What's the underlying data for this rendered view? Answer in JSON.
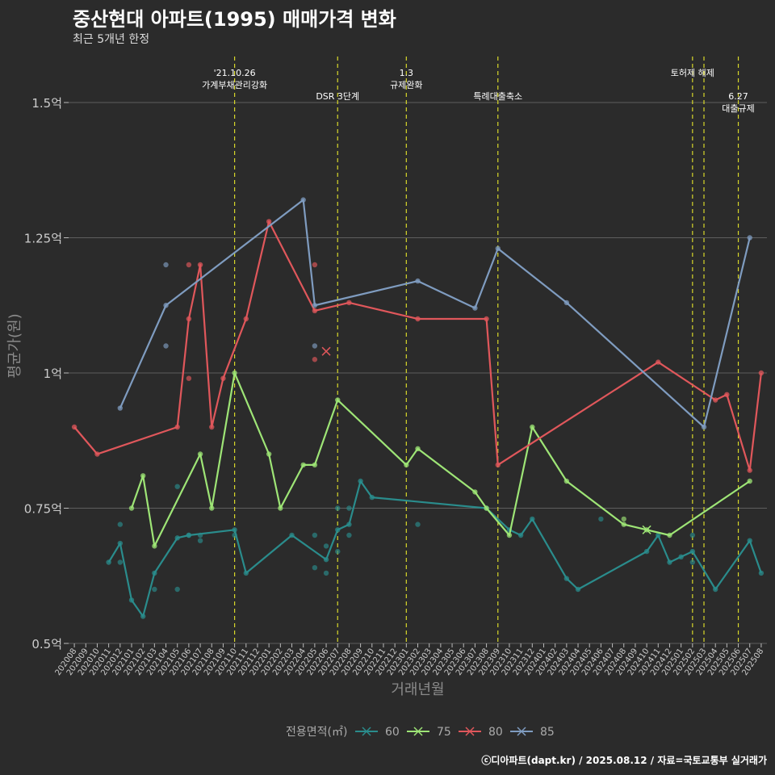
{
  "chart_data": {
    "type": "line",
    "title": "중산현대 아파트(1995) 매매가격 변화",
    "subtitle": "최근 5개년 한정",
    "xlabel": "거래년월",
    "ylabel": "평균가(원)",
    "y_tick_labels": [
      "0.5억",
      "0.75억",
      "1억",
      "1.25억",
      "1.5억"
    ],
    "y_tick_values": [
      0.5,
      0.75,
      1.0,
      1.25,
      1.5
    ],
    "ylim": [
      0.5,
      1.6
    ],
    "x_categories": [
      "202008",
      "202009",
      "202010",
      "202011",
      "202012",
      "202101",
      "202102",
      "202103",
      "202104",
      "202105",
      "202106",
      "202107",
      "202108",
      "202109",
      "202110",
      "202111",
      "202112",
      "202201",
      "202202",
      "202203",
      "202204",
      "202205",
      "202206",
      "202207",
      "202208",
      "202209",
      "202210",
      "202211",
      "202212",
      "202301",
      "202302",
      "202303",
      "202304",
      "202305",
      "202306",
      "202307",
      "202308",
      "202309",
      "202310",
      "202311",
      "202312",
      "202401",
      "202402",
      "202403",
      "202404",
      "202405",
      "202406",
      "202407",
      "202408",
      "202409",
      "202410",
      "202411",
      "202412",
      "202501",
      "202502",
      "202503",
      "202504",
      "202505",
      "202506",
      "202507",
      "202508"
    ],
    "grid": true,
    "legend_position": "bottom",
    "legend_title": "전용면적(㎡)",
    "credit": "ⓒ디아파트(dapt.kr) / 2025.08.12 / 자료=국토교통부 실거래가",
    "events": [
      {
        "x": "202110",
        "lines": [
          "'21.10.26",
          "가계부채관리강화"
        ],
        "row": 0
      },
      {
        "x": "202207",
        "lines": [
          "DSR 3단계"
        ],
        "row": 1
      },
      {
        "x": "202301",
        "lines": [
          "1.3",
          "규제완화"
        ],
        "row": 0
      },
      {
        "x": "202309",
        "lines": [
          "특례대출축소"
        ],
        "row": 1
      },
      {
        "x": "202502",
        "lines": [
          "토허제 해제"
        ],
        "row": 0
      },
      {
        "x": "202503",
        "lines": [],
        "row": 0
      },
      {
        "x": "202506",
        "lines": [
          "6.27",
          "대출규제"
        ],
        "row": 1
      }
    ],
    "series": [
      {
        "name": "60",
        "color": "#2a8c8c",
        "line": [
          [
            "202011",
            0.65
          ],
          [
            "202012",
            0.685
          ],
          [
            "202101",
            0.58
          ],
          [
            "202102",
            0.55
          ],
          [
            "202103",
            0.63
          ],
          [
            "202105",
            0.695
          ],
          [
            "202106",
            0.7
          ],
          [
            "202110",
            0.71
          ],
          [
            "202111",
            0.63
          ],
          [
            "202203",
            0.7
          ],
          [
            "202206",
            0.655
          ],
          [
            "202207",
            0.71
          ],
          [
            "202208",
            0.72
          ],
          [
            "202209",
            0.8
          ],
          [
            "202210",
            0.77
          ],
          [
            "202308",
            0.75
          ],
          [
            "202310",
            0.71
          ],
          [
            "202311",
            0.7
          ],
          [
            "202312",
            0.73
          ],
          [
            "202403",
            0.62
          ],
          [
            "202404",
            0.6
          ],
          [
            "202410",
            0.67
          ],
          [
            "202411",
            0.7
          ],
          [
            "202412",
            0.65
          ],
          [
            "202501",
            0.66
          ],
          [
            "202502",
            0.67
          ],
          [
            "202504",
            0.6
          ],
          [
            "202507",
            0.69
          ],
          [
            "202508",
            0.63
          ]
        ],
        "points": [
          [
            "202012",
            0.72
          ],
          [
            "202012",
            0.65
          ],
          [
            "202103",
            0.6
          ],
          [
            "202105",
            0.79
          ],
          [
            "202105",
            0.6
          ],
          [
            "202106",
            0.7
          ],
          [
            "202107",
            0.69
          ],
          [
            "202107",
            0.7
          ],
          [
            "202110",
            0.7
          ],
          [
            "202205",
            0.64
          ],
          [
            "202205",
            0.7
          ],
          [
            "202206",
            0.63
          ],
          [
            "202206",
            0.68
          ],
          [
            "202207",
            0.67
          ],
          [
            "202207",
            0.75
          ],
          [
            "202208",
            0.7
          ],
          [
            "202208",
            0.75
          ],
          [
            "202302",
            0.72
          ],
          [
            "202406",
            0.73
          ],
          [
            "202502",
            0.65
          ],
          [
            "202502",
            0.7
          ]
        ]
      },
      {
        "name": "75",
        "color": "#9ee576",
        "line": [
          [
            "202101",
            0.75
          ],
          [
            "202102",
            0.81
          ],
          [
            "202103",
            0.68
          ],
          [
            "202107",
            0.85
          ],
          [
            "202108",
            0.75
          ],
          [
            "202110",
            1.0
          ],
          [
            "202201",
            0.85
          ],
          [
            "202202",
            0.75
          ],
          [
            "202204",
            0.83
          ],
          [
            "202205",
            0.83
          ],
          [
            "202207",
            0.95
          ],
          [
            "202301",
            0.83
          ],
          [
            "202302",
            0.86
          ],
          [
            "202307",
            0.78
          ],
          [
            "202308",
            0.75
          ],
          [
            "202310",
            0.7
          ],
          [
            "202312",
            0.9
          ],
          [
            "202403",
            0.8
          ],
          [
            "202408",
            0.72
          ],
          [
            "202410",
            0.71
          ],
          [
            "202412",
            0.7
          ],
          [
            "202507",
            0.8
          ]
        ],
        "points": [
          [
            "202408",
            0.73
          ]
        ],
        "cross": [
          [
            "202410",
            0.71
          ]
        ]
      },
      {
        "name": "80",
        "color": "#e0575b",
        "line": [
          [
            "202008",
            0.9
          ],
          [
            "202010",
            0.85
          ],
          [
            "202105",
            0.9
          ],
          [
            "202106",
            1.1
          ],
          [
            "202107",
            1.2
          ],
          [
            "202108",
            0.9
          ],
          [
            "202109",
            0.99
          ],
          [
            "202111",
            1.1
          ],
          [
            "202201",
            1.28
          ],
          [
            "202205",
            1.115
          ],
          [
            "202208",
            1.13
          ],
          [
            "202302",
            1.1
          ],
          [
            "202308",
            1.1
          ],
          [
            "202309",
            0.83
          ],
          [
            "202411",
            1.02
          ],
          [
            "202504",
            0.95
          ],
          [
            "202505",
            0.96
          ],
          [
            "202507",
            0.82
          ],
          [
            "202508",
            1.0
          ]
        ],
        "points": [
          [
            "202106",
            1.2
          ],
          [
            "202106",
            0.99
          ],
          [
            "202205",
            1.2
          ],
          [
            "202205",
            1.025
          ]
        ],
        "cross": [
          [
            "202206",
            1.04
          ]
        ]
      },
      {
        "name": "85",
        "color": "#7f9cc0",
        "line": [
          [
            "202012",
            0.935
          ],
          [
            "202104",
            1.125
          ],
          [
            "202204",
            1.32
          ],
          [
            "202205",
            1.125
          ],
          [
            "202302",
            1.17
          ],
          [
            "202307",
            1.12
          ],
          [
            "202309",
            1.23
          ],
          [
            "202403",
            1.13
          ],
          [
            "202503",
            0.9
          ],
          [
            "202507",
            1.25
          ]
        ],
        "points": [
          [
            "202104",
            1.2
          ],
          [
            "202104",
            1.05
          ],
          [
            "202205",
            1.05
          ]
        ]
      }
    ]
  }
}
